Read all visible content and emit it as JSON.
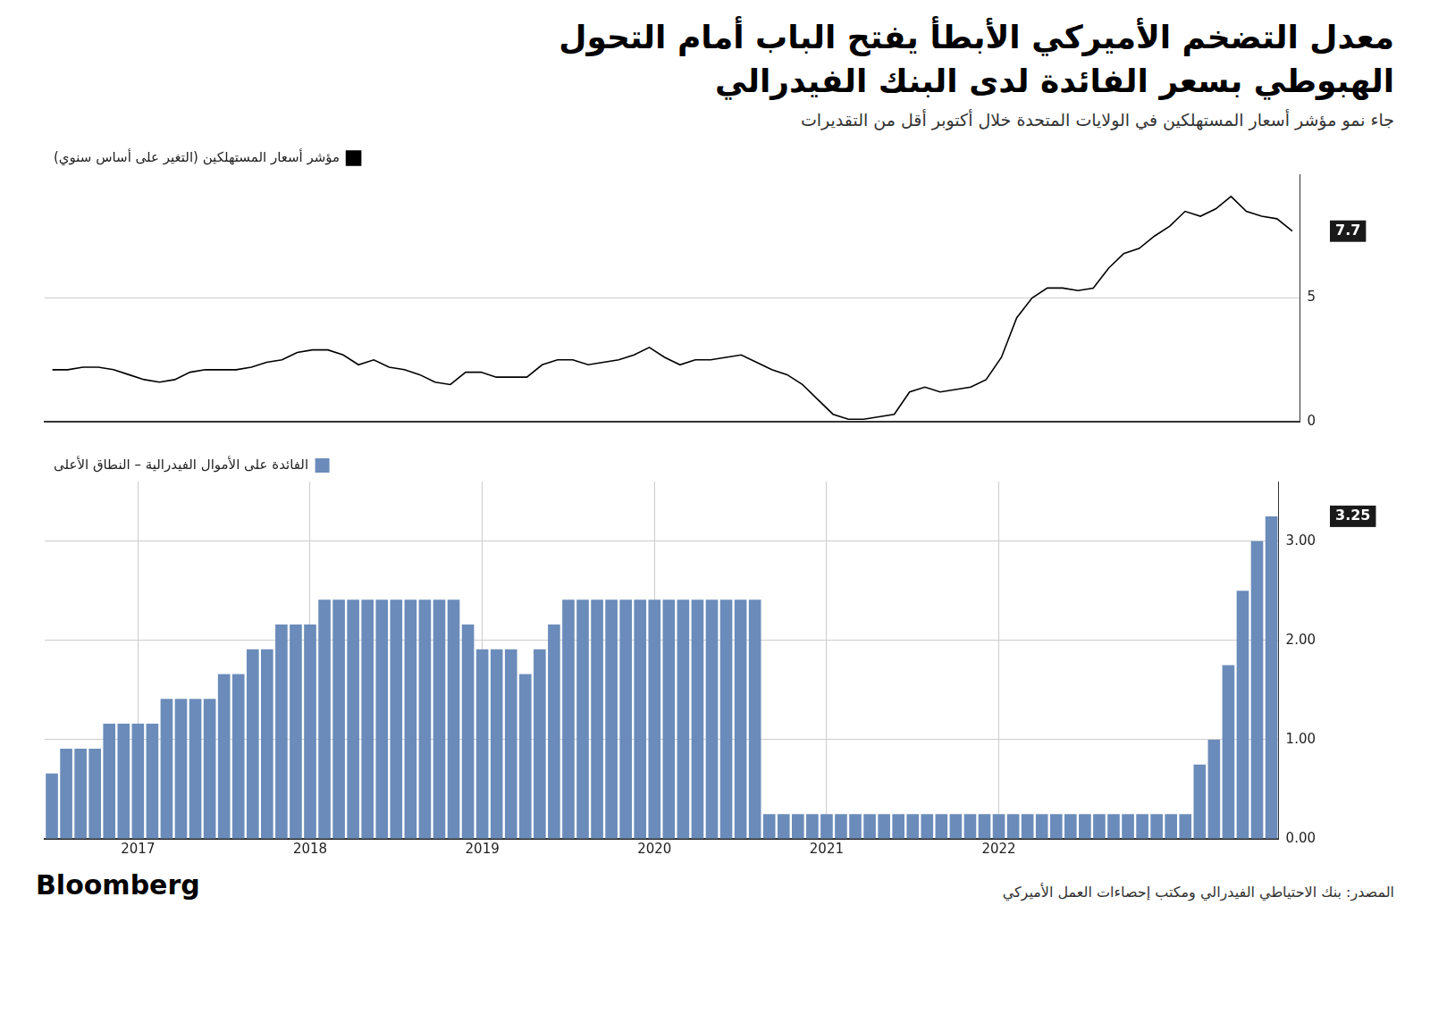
{
  "title": [
    "معدل التضخم الأميركي الأبطأ يفتح الباب أمام التحول",
    "الهبوطي بسعر الفائدة لدى البنك الفيدرالي"
  ],
  "subtitle": "جاء نمو مؤشر أسعار المستهلكين في الولايات المتحدة خلال أكتوبر أقل من التقديرات",
  "annotations": [
    "Bloomberg",
    "المصدر: بنك الاحتياطي الفيدرالي ومكتب إحصاءات العمل الأميركي"
  ],
  "chart_data": [
    {
      "type": "line",
      "categories": [
        null,
        null,
        null,
        null,
        null,
        null,
        null,
        null,
        null,
        null,
        null,
        null,
        null,
        null,
        null,
        null,
        null,
        null,
        null,
        null,
        null,
        null,
        null,
        null,
        null,
        null,
        null,
        null,
        null,
        null,
        null,
        null,
        null,
        null,
        null,
        null,
        null,
        null,
        null,
        null,
        null,
        null,
        null,
        null,
        null,
        null,
        null,
        null,
        null,
        null,
        null,
        null,
        null,
        null,
        null,
        null,
        null,
        null,
        null,
        null,
        null,
        null,
        null,
        null,
        null,
        null,
        null,
        null,
        null,
        null,
        null,
        null,
        null,
        null,
        null,
        null,
        null,
        null,
        null,
        null,
        null,
        null
      ],
      "series": [
        {
          "name": "مؤشر أسعار المستهلكين (التغير على أساس سنوي)",
          "color": "#000000",
          "values": [
            2.1,
            2.1,
            2.2,
            2.2,
            2.1,
            1.9,
            1.7,
            1.6,
            1.7,
            2.0,
            2.1,
            2.1,
            2.1,
            2.2,
            2.4,
            2.5,
            2.8,
            2.9,
            2.9,
            2.7,
            2.3,
            2.5,
            2.2,
            2.1,
            1.9,
            1.6,
            1.5,
            2.0,
            2.0,
            1.8,
            1.8,
            1.8,
            2.3,
            2.5,
            2.5,
            2.3,
            2.4,
            2.5,
            2.7,
            3.0,
            2.6,
            2.3,
            2.5,
            2.5,
            2.6,
            2.7,
            2.4,
            2.1,
            1.9,
            1.5,
            0.9,
            0.3,
            0.1,
            0.1,
            0.2,
            0.3,
            1.2,
            1.4,
            1.2,
            1.3,
            1.4,
            1.7,
            2.6,
            4.2,
            5.0,
            5.4,
            5.4,
            5.3,
            5.4,
            6.2,
            6.8,
            7.0,
            7.5,
            7.9,
            8.5,
            8.3,
            8.6,
            9.1,
            8.5,
            8.3,
            8.2,
            7.7
          ]
        }
      ],
      "ylim": [
        0,
        10.0
      ],
      "yticks": [
        0,
        5
      ],
      "grid": true,
      "legend": "top-right",
      "tick_labels": "y",
      "annotations": [
        "7.7"
      ]
    },
    {
      "type": "bar",
      "categories": [
        null,
        null,
        null,
        null,
        null,
        null,
        "2017",
        null,
        null,
        null,
        null,
        null,
        null,
        null,
        null,
        null,
        null,
        null,
        "2018",
        null,
        null,
        null,
        null,
        null,
        null,
        null,
        null,
        null,
        null,
        null,
        "2019",
        null,
        null,
        null,
        null,
        null,
        null,
        null,
        null,
        null,
        null,
        null,
        "2020",
        null,
        null,
        null,
        null,
        null,
        null,
        null,
        null,
        null,
        null,
        null,
        "2021",
        null,
        null,
        null,
        null,
        null,
        null,
        null,
        null,
        null,
        null,
        null,
        "2022",
        null,
        null,
        null,
        null,
        null,
        null,
        null,
        null,
        null,
        null,
        null,
        null,
        null,
        null,
        null,
        null,
        null,
        null,
        null
      ],
      "series": [
        {
          "name": "الفائدة على الأموال الفيدرالية – النطاق الأعلى",
          "color": "#6b8cba",
          "values": [
            0.66,
            0.91,
            0.91,
            0.91,
            1.16,
            1.16,
            1.16,
            1.16,
            1.41,
            1.41,
            1.41,
            1.41,
            1.66,
            1.66,
            1.91,
            1.91,
            2.16,
            2.16,
            2.16,
            2.41,
            2.41,
            2.41,
            2.41,
            2.41,
            2.41,
            2.41,
            2.41,
            2.41,
            2.41,
            2.16,
            1.91,
            1.91,
            1.91,
            1.66,
            1.91,
            2.16,
            2.41,
            2.41,
            2.41,
            2.41,
            2.41,
            2.41,
            2.41,
            2.41,
            2.41,
            2.41,
            2.41,
            2.41,
            2.41,
            2.41,
            0.25,
            0.25,
            0.25,
            0.25,
            0.25,
            0.25,
            0.25,
            0.25,
            0.25,
            0.25,
            0.25,
            0.25,
            0.25,
            0.25,
            0.25,
            0.25,
            0.25,
            0.25,
            0.25,
            0.25,
            0.25,
            0.25,
            0.25,
            0.25,
            0.25,
            0.25,
            0.25,
            0.25,
            0.25,
            0.25,
            0.75,
            1.0,
            1.75,
            2.5,
            3.0,
            3.25
          ]
        }
      ],
      "ylim": [
        0,
        3.6
      ],
      "yticks": [
        {
          "value": 0.0,
          "label": "0.00"
        },
        {
          "value": 1.0,
          "label": "1.00"
        },
        {
          "value": 2.0,
          "label": "2.00"
        },
        {
          "value": 3.0,
          "label": "3.00"
        }
      ],
      "grid": true,
      "legend": "top-right",
      "annotations": [
        "3.25"
      ]
    }
  ]
}
